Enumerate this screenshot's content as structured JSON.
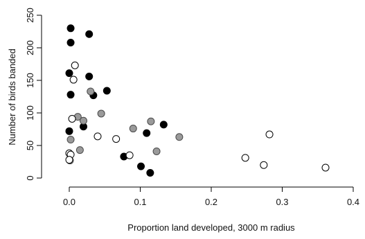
{
  "chart_data": {
    "type": "scatter",
    "title": "",
    "xlabel": "Proportion land developed, 3000 m radius",
    "ylabel": "Number of birds banded",
    "xlim": [
      -0.01,
      0.4
    ],
    "ylim": [
      0,
      250
    ],
    "x_ticks": [
      0.0,
      0.1,
      0.2,
      0.3,
      0.4
    ],
    "x_tick_labels": [
      "0.0",
      "0.1",
      "0.2",
      "0.3",
      "0.4"
    ],
    "y_ticks": [
      0,
      50,
      100,
      150,
      200,
      250
    ],
    "y_tick_labels": [
      "0",
      "50",
      "100",
      "150",
      "200",
      "250"
    ],
    "grid": false,
    "legend": "none",
    "series": [
      {
        "marker": "filled-black",
        "color": "#000000",
        "points": [
          {
            "x": 0.002,
            "y": 230
          },
          {
            "x": 0.002,
            "y": 208
          },
          {
            "x": 0.028,
            "y": 221
          },
          {
            "x": 0.0,
            "y": 161
          },
          {
            "x": 0.028,
            "y": 156
          },
          {
            "x": 0.002,
            "y": 128
          },
          {
            "x": 0.034,
            "y": 127
          },
          {
            "x": 0.053,
            "y": 134
          },
          {
            "x": 0.02,
            "y": 79
          },
          {
            "x": 0.0,
            "y": 72
          },
          {
            "x": 0.133,
            "y": 82
          },
          {
            "x": 0.109,
            "y": 69
          },
          {
            "x": 0.077,
            "y": 33
          },
          {
            "x": 0.101,
            "y": 18
          },
          {
            "x": 0.114,
            "y": 8
          }
        ]
      },
      {
        "marker": "filled-gray",
        "color": "#9a9a9a",
        "points": [
          {
            "x": 0.03,
            "y": 133
          },
          {
            "x": 0.045,
            "y": 99
          },
          {
            "x": 0.012,
            "y": 94
          },
          {
            "x": 0.02,
            "y": 88
          },
          {
            "x": 0.115,
            "y": 87
          },
          {
            "x": 0.09,
            "y": 76
          },
          {
            "x": 0.155,
            "y": 63
          },
          {
            "x": 0.002,
            "y": 59
          },
          {
            "x": 0.015,
            "y": 43
          },
          {
            "x": 0.123,
            "y": 41
          },
          {
            "x": 0.001,
            "y": 27
          }
        ]
      },
      {
        "marker": "open-circle",
        "color": "#000000",
        "points": [
          {
            "x": 0.008,
            "y": 173
          },
          {
            "x": 0.006,
            "y": 151
          },
          {
            "x": 0.004,
            "y": 91
          },
          {
            "x": 0.04,
            "y": 64
          },
          {
            "x": 0.066,
            "y": 60
          },
          {
            "x": 0.282,
            "y": 67
          },
          {
            "x": 0.0,
            "y": 38
          },
          {
            "x": 0.002,
            "y": 36
          },
          {
            "x": 0.0,
            "y": 28
          },
          {
            "x": 0.085,
            "y": 35
          },
          {
            "x": 0.248,
            "y": 31
          },
          {
            "x": 0.274,
            "y": 20
          },
          {
            "x": 0.361,
            "y": 16
          }
        ]
      }
    ]
  }
}
